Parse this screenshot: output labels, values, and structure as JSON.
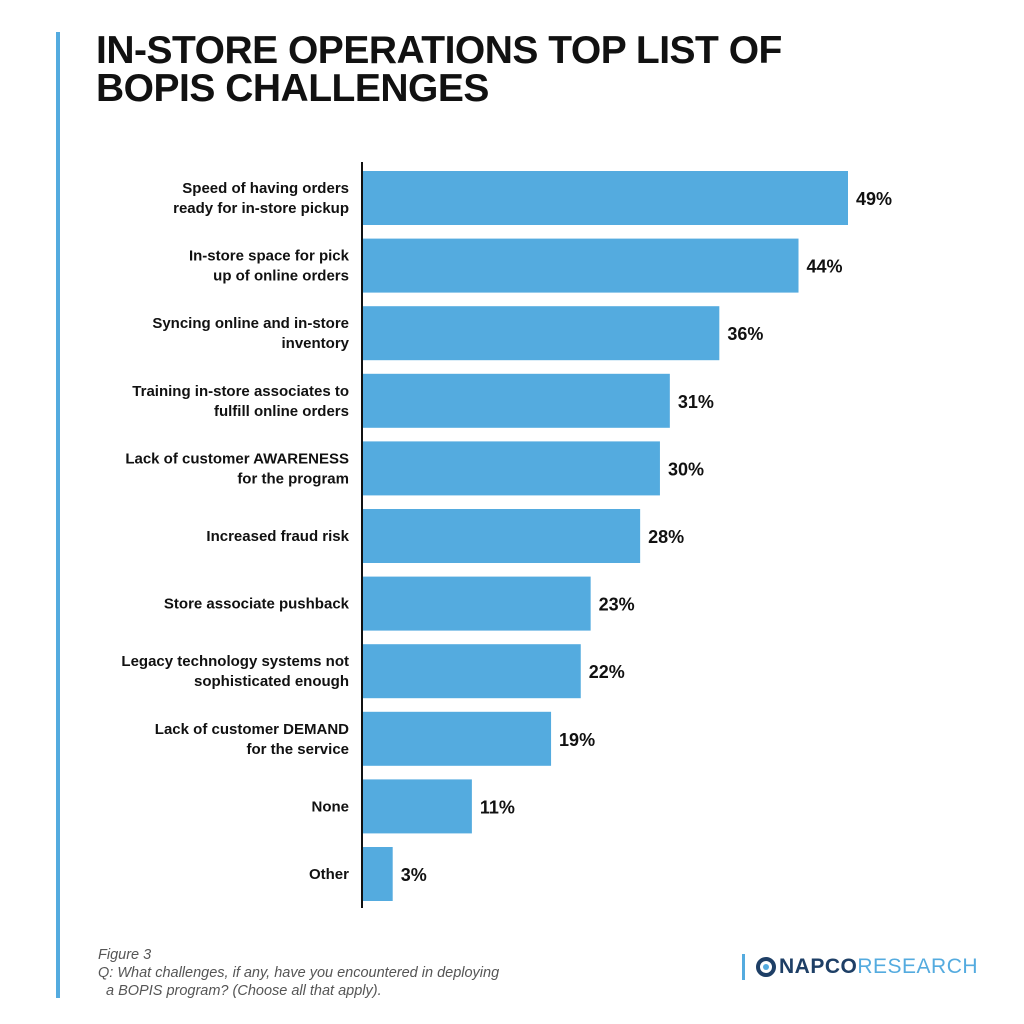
{
  "title": {
    "line1": "IN-STORE OPERATIONS TOP LIST OF",
    "line2": "BOPIS CHALLENGES"
  },
  "colors": {
    "bar": "#54ABDF",
    "accent": "#54ABDF",
    "axis": "#111111",
    "text": "#111111",
    "logo_dark": "#1E3F66",
    "logo_light": "#54ABDF"
  },
  "chart_data": {
    "type": "bar",
    "orientation": "horizontal",
    "categories": [
      [
        "Speed of having orders",
        "ready for in-store pickup"
      ],
      [
        "In-store space for pick",
        "up of online orders"
      ],
      [
        "Syncing online and in-store",
        "inventory"
      ],
      [
        "Training in-store associates to",
        "fulfill online orders"
      ],
      [
        "Lack of customer AWARENESS",
        "for the program"
      ],
      [
        "Increased fraud risk"
      ],
      [
        "Store associate pushback"
      ],
      [
        "Legacy technology systems not",
        "sophisticated enough"
      ],
      [
        "Lack of customer DEMAND",
        "for the service"
      ],
      [
        "None"
      ],
      [
        "Other"
      ]
    ],
    "values": [
      49,
      44,
      36,
      31,
      30,
      28,
      23,
      22,
      19,
      11,
      3
    ],
    "value_labels": [
      "49%",
      "44%",
      "36%",
      "31%",
      "30%",
      "28%",
      "23%",
      "22%",
      "19%",
      "11%",
      "3%"
    ],
    "unit": "%",
    "xlim": [
      0,
      49
    ],
    "grid": false,
    "legend": "none"
  },
  "caption": {
    "figure": "Figure 3",
    "question_line1": "Q: What challenges, if any, have you encountered in deploying",
    "question_line2": "a BOPIS program? (Choose all that apply)."
  },
  "logo": {
    "napco": "NAPCO",
    "research": "RESEARCH"
  }
}
